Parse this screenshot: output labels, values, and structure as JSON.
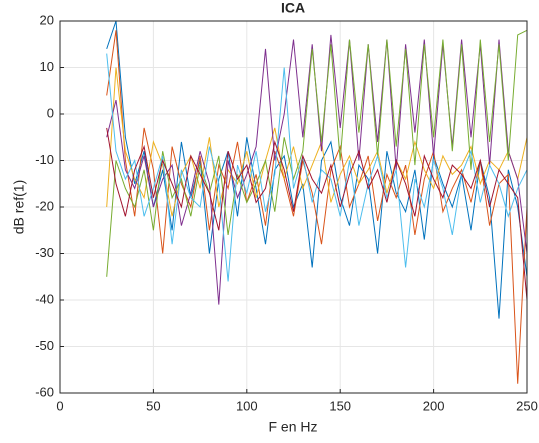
{
  "chart_data": {
    "type": "line",
    "title": "ICA",
    "xlabel": "F en Hz",
    "ylabel": "dB ref(1)",
    "x": [
      25,
      30,
      35,
      40,
      45,
      50,
      55,
      60,
      65,
      70,
      75,
      80,
      85,
      90,
      95,
      100,
      105,
      110,
      115,
      120,
      125,
      130,
      135,
      140,
      145,
      150,
      155,
      160,
      165,
      170,
      175,
      180,
      185,
      190,
      195,
      200,
      205,
      210,
      215,
      220,
      225,
      230,
      235,
      240,
      245,
      250
    ],
    "series": [
      {
        "color": "#0072BD",
        "values": [
          14,
          20,
          -5,
          -15,
          -8,
          -20,
          -12,
          -25,
          -6,
          -18,
          -10,
          -30,
          -14,
          -8,
          -22,
          -5,
          -16,
          -28,
          -12,
          -9,
          -20,
          -15,
          -33,
          -10,
          -6,
          -18,
          -24,
          -11,
          -14,
          -30,
          -8,
          -17,
          -21,
          -12,
          -27,
          -9,
          -15,
          -20,
          -13,
          -25,
          -10,
          -18,
          -44,
          -12,
          -20,
          -35
        ]
      },
      {
        "color": "#D95319",
        "values": [
          4,
          18,
          -10,
          -22,
          -3,
          -12,
          -30,
          -7,
          -15,
          -20,
          -9,
          -25,
          -11,
          -16,
          -6,
          -19,
          -13,
          -24,
          -8,
          -14,
          -22,
          -10,
          -17,
          -28,
          -12,
          -7,
          -20,
          -15,
          -9,
          -23,
          -13,
          -18,
          -11,
          -26,
          -14,
          -8,
          -21,
          -16,
          -12,
          -19,
          -10,
          -24,
          -15,
          -13,
          -58,
          -20
        ]
      },
      {
        "color": "#EDB120",
        "values": [
          -20,
          10,
          -8,
          -14,
          -18,
          -6,
          -11,
          -22,
          -13,
          -9,
          -16,
          -5,
          -20,
          -12,
          -15,
          -8,
          -18,
          -10,
          -3,
          -14,
          -7,
          -16,
          -11,
          -6,
          -19,
          -13,
          -9,
          -15,
          -12,
          -8,
          -17,
          -10,
          -14,
          -6,
          -12,
          -16,
          -9,
          -13,
          -11,
          -7,
          -15,
          -10,
          -12,
          -8,
          -14,
          -5
        ]
      },
      {
        "color": "#7E2F8E",
        "values": [
          -5,
          3,
          -12,
          -16,
          -9,
          -20,
          -14,
          -11,
          -24,
          -17,
          -8,
          -15,
          -41,
          -10,
          -18,
          -13,
          -7,
          14,
          -10,
          0,
          16,
          -5,
          15,
          -8,
          17,
          -3,
          16,
          -10,
          15,
          -6,
          16,
          -12,
          15,
          -4,
          16,
          -9,
          15,
          -7,
          16,
          -5,
          15,
          -11,
          16,
          -8,
          -14,
          -30
        ]
      },
      {
        "color": "#77AC30",
        "values": [
          -35,
          -10,
          -16,
          -20,
          -12,
          -25,
          -8,
          -18,
          -14,
          -22,
          -11,
          -17,
          -9,
          -26,
          -13,
          -19,
          -15,
          -10,
          -21,
          -5,
          -14,
          -8,
          14,
          -6,
          15,
          -10,
          16,
          -4,
          15,
          -9,
          16,
          -7,
          14,
          -11,
          15,
          -5,
          16,
          -8,
          15,
          -12,
          16,
          -6,
          15,
          -10,
          17,
          18
        ]
      },
      {
        "color": "#4DBEEE",
        "values": [
          13,
          -8,
          -14,
          -10,
          -22,
          -16,
          -9,
          -28,
          -12,
          -18,
          -20,
          -7,
          -15,
          -36,
          -11,
          -17,
          -8,
          -21,
          -13,
          10,
          -16,
          -9,
          -19,
          -12,
          -14,
          -22,
          -10,
          -24,
          -15,
          -9,
          -18,
          -12,
          -33,
          -14,
          -20,
          -10,
          -16,
          -26,
          -13,
          -8,
          -19,
          -11,
          -15,
          -22,
          -16,
          -12
        ]
      },
      {
        "color": "#A2142F",
        "values": [
          -3,
          -15,
          -22,
          -12,
          -7,
          -18,
          -10,
          -15,
          -20,
          -9,
          -13,
          -17,
          -25,
          -8,
          -14,
          -11,
          -19,
          -16,
          -6,
          -12,
          -21,
          -9,
          -14,
          -17,
          -11,
          -20,
          -13,
          -8,
          -16,
          -12,
          -19,
          -10,
          -15,
          -22,
          -9,
          -14,
          -18,
          -11,
          -13,
          -16,
          -10,
          -20,
          -12,
          -15,
          -18,
          -40
        ]
      }
    ],
    "xlim": [
      0,
      250
    ],
    "xticks": [
      0,
      50,
      100,
      150,
      200,
      250
    ],
    "ylim": [
      -60,
      20
    ],
    "yticks": [
      -60,
      -50,
      -40,
      -30,
      -20,
      -10,
      0,
      10,
      20
    ],
    "grid": true
  }
}
